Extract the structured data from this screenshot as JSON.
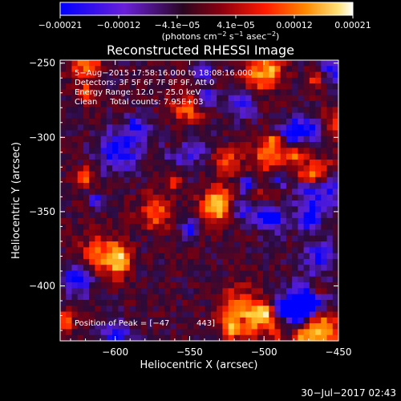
{
  "chart_data": {
    "type": "heatmap",
    "title": "Reconstructed RHESSI Image",
    "xlabel": "Heliocentric X (arcsec)",
    "ylabel": "Heliocentric Y (arcsec)",
    "xlim": [
      -637,
      -450
    ],
    "ylim": [
      -437,
      -248
    ],
    "x_ticks": [
      -600,
      -550,
      -500,
      -450
    ],
    "x_tick_labels": [
      "−600",
      "−550",
      "−500",
      "−450"
    ],
    "y_ticks": [
      -250,
      -300,
      -350,
      -400
    ],
    "y_tick_labels": [
      "−250",
      "−300",
      "−350",
      "−400"
    ],
    "grid_size": [
      48,
      48
    ],
    "colorbar": {
      "range": [
        -0.00021,
        0.00021
      ],
      "tick_labels": [
        "−0.00021",
        "−0.00012",
        "−4.1e−05",
        "4.1e−05",
        "0.00012",
        "0.00021"
      ],
      "units_prefix": "(photons cm",
      "units_exp1": "−2",
      "units_mid": " s",
      "units_exp2": "−1",
      "units_mid2": " asec",
      "units_exp3": "−2",
      "units_suffix": ")"
    },
    "colors": [
      "#0000ff",
      "#5a1ed2",
      "#2a0a3a",
      "#7a0010",
      "#ff2000",
      "#ff8c00",
      "#ffd84a",
      "#ffffff"
    ],
    "annotations": [
      "5−Aug−2015 17:58:16.000 to 18:08:16.000",
      "Detectors: 3F 5F 6F 7F 8F 9F, Att 0",
      "Energy Range: 12.0 − 25.0 keV",
      "Clean     Total counts: 7.95E+03"
    ],
    "peak_label": "Position of Peak = [−47",
    "peak_label_tail": "443]",
    "peak_position": [
      -470,
      -443
    ]
  },
  "footer_date": "30−Jul−2017 02:43"
}
